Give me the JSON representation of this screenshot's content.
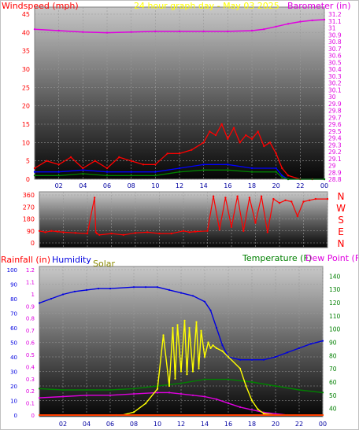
{
  "colors": {
    "wind": "#ff0000",
    "gust": "#ff0000",
    "avgwind": "#0000ff",
    "green": "#008000",
    "barometer": "#e000e0",
    "direction": "#ff0000",
    "humidity": "#0000e0",
    "solar": "#ffff00",
    "temperature": "#008000",
    "dewpoint": "#e000e0",
    "rainfall": "#ff4000",
    "bg_dark": "#000000",
    "bg_light": "#c8c8c8"
  },
  "chart_data": [
    {
      "type": "line",
      "labels": {
        "left": "Windspeed (mph)",
        "center": "24 hour graph day - May 03 2025",
        "right": "Barometer (in)"
      },
      "x_ticks": [
        "02",
        "04",
        "06",
        "08",
        "10",
        "12",
        "14",
        "16",
        "18",
        "20",
        "22",
        "00"
      ],
      "y_left_ticks": [
        "0",
        "5",
        "10",
        "15",
        "20",
        "25",
        "30",
        "35",
        "40",
        "45"
      ],
      "ylim_left": [
        0,
        45
      ],
      "y_right_ticks": [
        "28.8",
        "28.9",
        "29",
        "29.1",
        "29.2",
        "29.3",
        "29.4",
        "29.5",
        "29.6",
        "29.7",
        "29.8",
        "29.9",
        "30",
        "30.1",
        "30.2",
        "30.3",
        "30.4",
        "30.5",
        "30.6",
        "30.7",
        "30.8",
        "30.9",
        "31",
        "31.1",
        "31.2"
      ],
      "ylim_right": [
        28.8,
        31.2
      ],
      "series": [
        {
          "key": "barometer",
          "x": [
            0,
            2,
            4,
            6,
            8,
            10,
            12,
            14,
            16,
            18,
            19,
            20,
            21,
            22,
            23,
            24
          ],
          "values": [
            30.98,
            30.96,
            30.94,
            30.93,
            30.94,
            30.95,
            30.95,
            30.95,
            30.95,
            30.96,
            30.98,
            31.02,
            31.06,
            31.09,
            31.11,
            31.12
          ]
        },
        {
          "key": "gust",
          "x": [
            0,
            1,
            2,
            3,
            4,
            5,
            6,
            7,
            8,
            9,
            10,
            11,
            12,
            13,
            14,
            14.5,
            15,
            15.5,
            16,
            16.5,
            17,
            17.5,
            18,
            18.5,
            19,
            19.5,
            20,
            20.5,
            21,
            22,
            23,
            24
          ],
          "values": [
            3,
            5,
            4,
            6,
            3,
            5,
            3,
            6,
            5,
            4,
            4,
            7,
            7,
            8,
            10,
            13,
            12,
            15,
            11,
            14,
            10,
            12,
            11,
            13,
            9,
            10,
            7,
            3,
            1,
            0,
            0,
            0
          ]
        },
        {
          "key": "avgwind",
          "x": [
            0,
            2,
            4,
            6,
            8,
            10,
            12,
            14,
            16,
            18,
            20,
            20.5,
            21,
            24
          ],
          "values": [
            2,
            2,
            2.5,
            2,
            2,
            2,
            3,
            4,
            4,
            3,
            3,
            1,
            0,
            0
          ]
        },
        {
          "key": "green",
          "x": [
            0,
            2,
            4,
            6,
            8,
            10,
            12,
            14,
            16,
            18,
            20,
            20.5,
            21,
            24
          ],
          "values": [
            1,
            1,
            1.5,
            1,
            1,
            1,
            2,
            2.5,
            2.5,
            2,
            2,
            0.5,
            0,
            0
          ]
        }
      ]
    },
    {
      "type": "line",
      "y_ticks": [
        "0",
        "90",
        "180",
        "270",
        "360"
      ],
      "ylim": [
        0,
        360
      ],
      "direction_labels": [
        "N",
        "W",
        "S",
        "E",
        "N"
      ],
      "series": [
        {
          "key": "direction",
          "x": [
            0,
            0.5,
            1,
            1.5,
            2,
            3,
            4,
            4.6,
            4.7,
            4.8,
            5,
            6,
            7,
            8,
            9,
            10,
            11,
            12,
            12.5,
            13,
            14,
            14.5,
            15,
            15.5,
            16,
            16.5,
            17,
            17.5,
            18,
            18.5,
            19,
            19.5,
            20,
            20.5,
            21,
            21.5,
            22,
            22.5,
            23,
            24
          ],
          "values": [
            90,
            80,
            90,
            85,
            80,
            75,
            70,
            340,
            80,
            70,
            60,
            70,
            60,
            75,
            80,
            70,
            70,
            90,
            80,
            85,
            90,
            350,
            100,
            340,
            120,
            350,
            90,
            340,
            150,
            350,
            80,
            330,
            300,
            320,
            310,
            200,
            310,
            320,
            330,
            330
          ]
        }
      ]
    },
    {
      "type": "line",
      "labels": {
        "rainfall": "Rainfall (in)",
        "humidity": "Humidity",
        "solar": "Solar",
        "temperature": "Temperature (F)",
        "dewpoint": "Dew Point (F)"
      },
      "x_ticks": [
        "02",
        "04",
        "06",
        "08",
        "10",
        "12",
        "14",
        "16",
        "18",
        "20",
        "22",
        "00"
      ],
      "rain_ticks": [
        "0",
        "0.1",
        "0.2",
        "0.3",
        "0.4",
        "0.5",
        "0.6",
        "0.7",
        "0.8",
        "0.9",
        "1",
        "1.1",
        "1.2"
      ],
      "ylim_rain": [
        0,
        1.2
      ],
      "humidity_ticks": [
        "0",
        "10",
        "20",
        "30",
        "40",
        "50",
        "60",
        "70",
        "80",
        "90",
        "100"
      ],
      "ylim_humidity": [
        0,
        100
      ],
      "temp_ticks": [
        "40",
        "50",
        "60",
        "70",
        "80",
        "90",
        "100",
        "110",
        "120",
        "130",
        "140"
      ],
      "ylim_temp": [
        35,
        145
      ],
      "series": [
        {
          "key": "humidity",
          "x": [
            0,
            1,
            2,
            3,
            4,
            5,
            6,
            8,
            9,
            10,
            11,
            12,
            13,
            14,
            14.5,
            15,
            15.5,
            16,
            17,
            18,
            19,
            20,
            21,
            22,
            23,
            24
          ],
          "values": [
            77,
            80,
            83,
            85,
            86,
            87,
            87,
            88,
            88,
            88,
            86,
            84,
            82,
            78,
            72,
            60,
            48,
            40,
            38,
            38,
            38,
            40,
            43,
            46,
            49,
            51
          ]
        },
        {
          "key": "temperature",
          "x": [
            0,
            2,
            4,
            6,
            8,
            10,
            12,
            14,
            16,
            18,
            20,
            22,
            24
          ],
          "values": [
            55,
            54,
            54,
            54,
            55,
            57,
            59,
            62,
            62,
            60,
            57,
            54,
            52
          ]
        },
        {
          "key": "dewpoint",
          "x": [
            0,
            2,
            4,
            6,
            8,
            10,
            11,
            12,
            13,
            14,
            15,
            16,
            17,
            18,
            19,
            20,
            21,
            22,
            24
          ],
          "values": [
            48,
            49,
            50,
            50,
            51,
            52,
            52,
            51,
            50,
            49,
            47,
            44,
            41,
            39,
            37,
            36,
            35,
            35,
            35
          ]
        },
        {
          "key": "solar",
          "x": [
            0,
            6.5,
            7,
            8,
            9,
            10,
            10.5,
            11,
            11.3,
            11.5,
            11.7,
            12,
            12.3,
            12.5,
            12.7,
            13,
            13.3,
            13.5,
            13.7,
            14,
            14.3,
            14.5,
            14.7,
            15,
            15.5,
            16,
            17,
            17.5,
            18,
            18.5,
            19,
            20,
            24
          ],
          "values": [
            0,
            0,
            0,
            2,
            8,
            18,
            55,
            20,
            60,
            25,
            62,
            30,
            65,
            28,
            60,
            30,
            64,
            32,
            58,
            40,
            50,
            46,
            48,
            46,
            44,
            40,
            32,
            20,
            10,
            4,
            1,
            0,
            0
          ]
        },
        {
          "key": "rainfall",
          "x": [
            0,
            24
          ],
          "values": [
            0,
            0
          ]
        }
      ]
    }
  ]
}
